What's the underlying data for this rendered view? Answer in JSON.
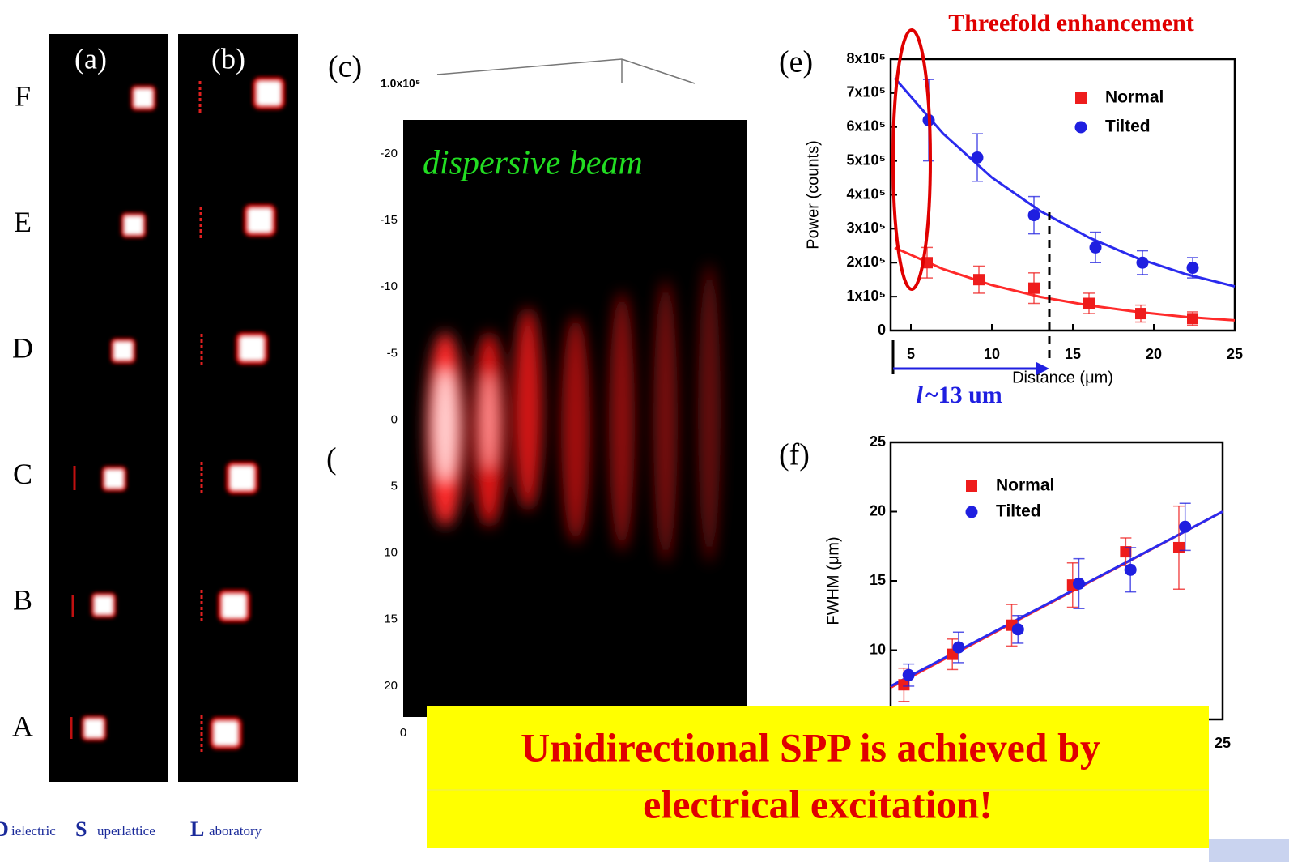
{
  "row_labels": [
    "F",
    "E",
    "D",
    "C",
    "B",
    "A"
  ],
  "panel_a": {
    "label": "(a)"
  },
  "panel_b": {
    "label": "(b)"
  },
  "panel_c": {
    "label": "(c)",
    "top_tick": "1.0x10⁵",
    "annotation": "dispersive beam",
    "image_y_labels": [
      "-20",
      "-15",
      "-10",
      "-5",
      "0",
      "5",
      "10",
      "15",
      "20"
    ],
    "image_x_label": "0"
  },
  "panel_d": {
    "label": "("
  },
  "chart_data": [
    {
      "type": "scatter",
      "panel_label": "(e)",
      "annotation": "Threefold enhancement",
      "length_symbol": "l",
      "length_label": "~13 um",
      "x_label": "Distance (μm)",
      "y_label": "Power (counts)",
      "xlim": [
        3.75,
        25
      ],
      "xticks": [
        5,
        10,
        15,
        20,
        25
      ],
      "ylim": [
        0,
        800000
      ],
      "yticks": [
        0,
        {
          "value": 100000,
          "label": "1x10⁵"
        },
        {
          "value": 200000,
          "label": "2x10⁵"
        },
        {
          "value": 300000,
          "label": "3x10⁵"
        },
        {
          "value": 400000,
          "label": "4x10⁵"
        },
        {
          "value": 500000,
          "label": "5x10⁵"
        },
        {
          "value": 600000,
          "label": "6x10⁵"
        },
        {
          "value": 700000,
          "label": "7x10⁵"
        },
        {
          "value": 800000,
          "label": "8x10⁵"
        }
      ],
      "legend": "upper right",
      "series": [
        {
          "name": "Normal",
          "color": "#ee1c1c",
          "marker": "square",
          "x": [
            6,
            9.2,
            12.6,
            16,
            19.2,
            22.4
          ],
          "values": [
            200000,
            150000,
            125000,
            80000,
            50000,
            35000
          ],
          "errors": [
            45000,
            40000,
            45000,
            30000,
            25000,
            20000
          ]
        },
        {
          "name": "Tilted",
          "color": "#1f1fe0",
          "marker": "circle",
          "x": [
            6.1,
            9.1,
            12.6,
            16.4,
            19.3,
            22.4
          ],
          "values": [
            620000,
            510000,
            340000,
            245000,
            200000,
            185000
          ],
          "errors": [
            120000,
            70000,
            55000,
            45000,
            35000,
            30000
          ]
        }
      ],
      "fit_lines": [
        {
          "color": "#ff2a2a",
          "x": [
            4,
            7,
            10,
            13,
            16,
            19,
            22,
            25
          ],
          "values": [
            244000,
            181000,
            134000,
            99000,
            74000,
            55000,
            40000,
            30000
          ]
        },
        {
          "color": "#2a2aee",
          "x": [
            4,
            7,
            10,
            13,
            16,
            19,
            22,
            25
          ],
          "values": [
            744000,
            580000,
            451000,
            352000,
            274000,
            213000,
            166000,
            130000
          ]
        }
      ]
    },
    {
      "type": "scatter",
      "panel_label": "(f)",
      "y_label": "FWHM (μm)",
      "xlim": [
        3.75,
        25
      ],
      "xticks": [
        25
      ],
      "ylim": [
        5,
        25
      ],
      "yticks": [
        10,
        15,
        20,
        25
      ],
      "legend": "upper left",
      "series": [
        {
          "name": "Normal",
          "color": "#ee1c1c",
          "marker": "square",
          "x": [
            4.6,
            7.7,
            11.5,
            15.4,
            18.8,
            22.2
          ],
          "values": [
            7.5,
            9.7,
            11.8,
            14.7,
            17.1,
            17.4
          ],
          "errors": [
            1.2,
            1.1,
            1.5,
            1.6,
            1.0,
            3.0
          ]
        },
        {
          "name": "Tilted",
          "color": "#1f1fe0",
          "marker": "circle",
          "x": [
            4.9,
            8.1,
            11.9,
            15.8,
            19.1,
            22.6
          ],
          "values": [
            8.2,
            10.2,
            11.5,
            14.8,
            15.8,
            18.9
          ],
          "errors": [
            0.8,
            1.1,
            1.0,
            1.8,
            1.6,
            1.7
          ]
        }
      ],
      "fit_lines": [
        {
          "color": "#ff2a2a",
          "x": [
            3.75,
            25
          ],
          "values": [
            7.3,
            20
          ]
        },
        {
          "color": "#2a2aee",
          "x": [
            3.75,
            25
          ],
          "values": [
            7.4,
            20
          ]
        }
      ]
    }
  ],
  "callout": [
    "Unidirectional SPP is achieved by",
    "electrical excitation!"
  ],
  "footer": {
    "initials": [
      "D",
      "S",
      "L"
    ],
    "words": [
      "ielectric",
      "uperlattice",
      "aboratory"
    ]
  }
}
